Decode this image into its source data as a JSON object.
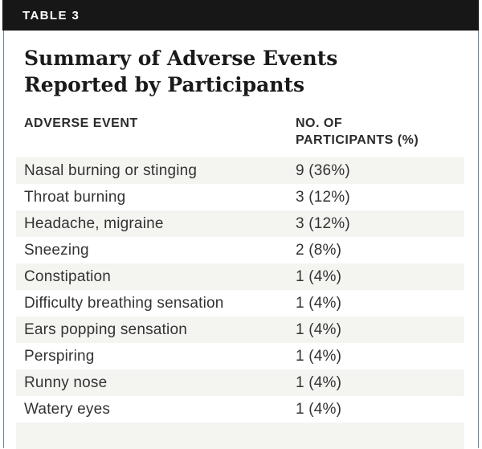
{
  "header_bar": {
    "label": "TABLE 3"
  },
  "table": {
    "title_line1": "Summary of Adverse Events",
    "title_line2": "Reported by Participants",
    "col1_header": "ADVERSE EVENT",
    "col2_header_line1": "NO. OF",
    "col2_header_line2": "PARTICIPANTS (%)",
    "rows": [
      {
        "event": "Nasal burning or stinging",
        "value": "9 (36%)"
      },
      {
        "event": "Throat burning",
        "value": "3 (12%)"
      },
      {
        "event": "Headache, migraine",
        "value": "3 (12%)"
      },
      {
        "event": "Sneezing",
        "value": "2 (8%)"
      },
      {
        "event": "Constipation",
        "value": "1 (4%)"
      },
      {
        "event": "Difficulty breathing sensation",
        "value": "1 (4%)"
      },
      {
        "event": "Ears popping sensation",
        "value": "1 (4%)"
      },
      {
        "event": "Perspiring",
        "value": "1 (4%)"
      },
      {
        "event": "Runny nose",
        "value": "1 (4%)"
      },
      {
        "event": "Watery eyes",
        "value": "1 (4%)"
      }
    ]
  },
  "colors": {
    "bar_bg": "#171717",
    "bar_text": "#ffffff",
    "border_color": "#64899b",
    "title_color": "#1a1a1a",
    "header_color": "#2b2b2b",
    "text_color": "#333333",
    "row_shade": "#f4f5f1",
    "page_bg": "#ffffff"
  }
}
